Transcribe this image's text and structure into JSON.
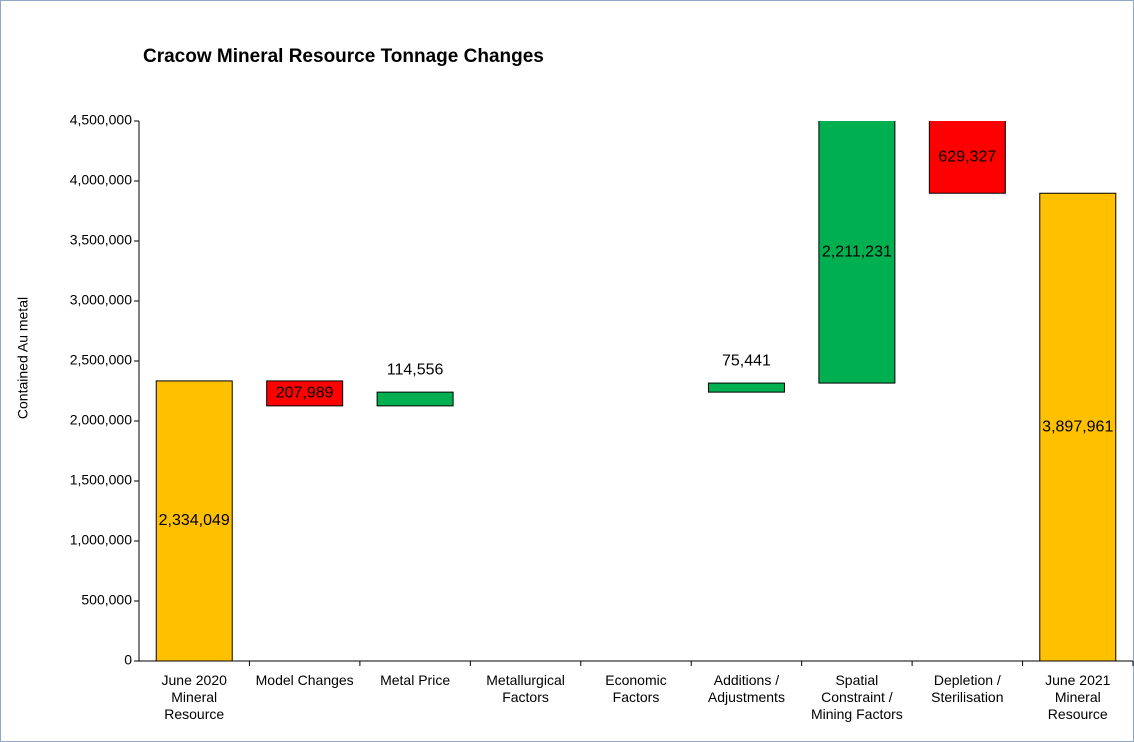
{
  "chart_data": {
    "type": "waterfall",
    "title": "Cracow Mineral Resource Tonnage Changes",
    "y_label": "Contained Au metal",
    "categories": [
      "June 2020 Mineral Resource",
      "Model Changes",
      "Metal Price",
      "Metallurgical Factors",
      "Economic Factors",
      "Additions / Adjustments",
      "Spatial Constraint / Mining Factors",
      "Depletion / Sterilisation",
      "June 2021 Mineral Resource"
    ],
    "measure": [
      "absolute",
      "relative",
      "relative",
      "relative",
      "relative",
      "relative",
      "relative",
      "relative",
      "absolute"
    ],
    "values": [
      2334049,
      -207989,
      114556,
      0,
      0,
      75441,
      2211231,
      -629327,
      3897961
    ],
    "value_labels": [
      "2,334,049",
      "207,989",
      "114,556",
      null,
      null,
      "75,441",
      "2,211,231",
      "629,327",
      "3,897,961"
    ],
    "colors": {
      "total": "#ffc000",
      "increase": "#00b050",
      "decrease": "#ff0000"
    },
    "ylim": [
      0,
      4500000
    ],
    "yticks": [
      0,
      {
        "value": 500000,
        "label": "500,000"
      },
      {
        "value": 1000000,
        "label": "1,000,000"
      },
      {
        "value": 1500000,
        "label": "1,500,000"
      },
      {
        "value": 2000000,
        "label": "2,000,000"
      },
      {
        "value": 2500000,
        "label": "2,500,000"
      },
      {
        "value": 3000000,
        "label": "3,000,000"
      },
      {
        "value": 3500000,
        "label": "3,500,000"
      },
      {
        "value": 4000000,
        "label": "4,000,000"
      },
      {
        "value": 4500000,
        "label": "4,500,000"
      }
    ]
  }
}
